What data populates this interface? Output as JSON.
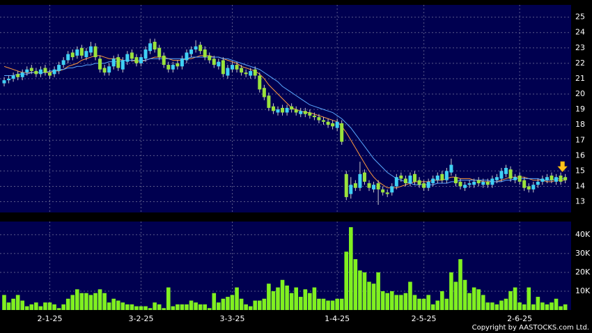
{
  "chart_data": [
    {
      "type": "candlestick",
      "categories": [
        null,
        null,
        null,
        null,
        null,
        null,
        null,
        null,
        null,
        null,
        "2-1-25",
        null,
        null,
        null,
        null,
        null,
        null,
        null,
        null,
        null,
        null,
        null,
        null,
        null,
        null,
        null,
        null,
        null,
        null,
        null,
        "3-2-25",
        null,
        null,
        null,
        null,
        null,
        null,
        null,
        null,
        null,
        null,
        null,
        null,
        null,
        null,
        null,
        null,
        null,
        null,
        null,
        "3-3-25",
        null,
        null,
        null,
        null,
        null,
        null,
        null,
        null,
        null,
        null,
        null,
        null,
        null,
        null,
        null,
        null,
        null,
        null,
        null,
        null,
        null,
        null,
        "1-4-25",
        null,
        null,
        null,
        null,
        null,
        null,
        null,
        null,
        null,
        null,
        null,
        null,
        null,
        null,
        null,
        null,
        null,
        null,
        "2-5-25",
        null,
        null,
        null,
        null,
        null,
        null,
        null,
        null,
        null,
        null,
        null,
        null,
        null,
        null,
        null,
        null,
        null,
        null,
        null,
        null,
        "2-6-25",
        null,
        null,
        null,
        null,
        null,
        null,
        null,
        null,
        null,
        null
      ],
      "open": [
        20.7,
        20.9,
        21.0,
        21.3,
        21.1,
        21.4,
        21.7,
        21.5,
        21.3,
        21.7,
        21.4,
        21.3,
        21.5,
        21.9,
        22.2,
        22.7,
        22.5,
        23.0,
        22.4,
        22.7,
        23.1,
        22.3,
        21.7,
        21.4,
        21.8,
        22.4,
        21.6,
        22.1,
        22.7,
        22.4,
        22.0,
        22.3,
        22.8,
        23.4,
        23.0,
        22.5,
        21.9,
        21.6,
        22.0,
        21.8,
        22.2,
        22.6,
        22.9,
        23.2,
        22.9,
        22.5,
        22.3,
        21.8,
        22.2,
        21.2,
        21.6,
        21.9,
        21.7,
        21.4,
        21.2,
        21.6,
        21.2,
        20.4,
        19.9,
        19.2,
        18.8,
        19.1,
        18.8,
        19.2,
        19.0,
        18.7,
        18.9,
        18.8,
        18.6,
        18.5,
        18.3,
        18.2,
        18.1,
        17.8,
        18.1,
        14.8,
        13.5,
        14.2,
        13.9,
        14.9,
        14.2,
        13.8,
        14.2,
        13.8,
        13.6,
        13.6,
        14.0,
        14.7,
        14.5,
        14.2,
        14.8,
        14.4,
        14.2,
        13.9,
        14.2,
        14.4,
        14.8,
        14.4,
        14.9,
        14.6,
        14.3,
        13.9,
        14.1,
        14.1,
        14.4,
        14.1,
        14.3,
        14.1,
        14.4,
        14.5,
        14.8,
        15.1,
        14.4,
        14.7,
        14.4,
        14.0,
        13.8,
        14.1,
        14.3,
        14.4,
        14.7,
        14.3,
        14.7,
        14.6
      ],
      "high": [
        21.1,
        21.2,
        21.4,
        21.5,
        21.6,
        21.8,
        21.9,
        21.7,
        21.8,
        21.9,
        21.6,
        21.8,
        22.1,
        22.4,
        22.8,
        22.9,
        23.1,
        23.2,
        23.0,
        23.4,
        23.3,
        22.5,
        21.9,
        22.0,
        22.5,
        22.6,
        22.4,
        22.8,
        22.9,
        22.6,
        22.6,
        23.1,
        23.6,
        23.6,
        23.2,
        22.7,
        22.1,
        22.1,
        22.2,
        22.5,
        22.9,
        23.1,
        23.5,
        23.4,
        23.1,
        22.7,
        22.5,
        22.3,
        22.4,
        21.9,
        22.1,
        22.1,
        21.9,
        21.6,
        21.7,
        21.8,
        21.4,
        20.6,
        20.1,
        19.4,
        19.2,
        19.3,
        19.3,
        19.4,
        19.2,
        19.1,
        19.1,
        19.0,
        18.8,
        18.7,
        18.5,
        18.4,
        18.3,
        18.4,
        18.3,
        15.0,
        14.6,
        14.4,
        15.6,
        15.1,
        14.4,
        14.3,
        14.4,
        14.0,
        13.8,
        14.2,
        14.8,
        14.9,
        14.7,
        14.9,
        15.0,
        14.6,
        14.4,
        14.5,
        14.7,
        14.9,
        15.0,
        15.2,
        15.8,
        14.8,
        14.5,
        14.3,
        14.4,
        14.5,
        14.6,
        14.5,
        14.5,
        14.7,
        14.8,
        15.2,
        15.4,
        15.3,
        14.8,
        14.9,
        14.6,
        14.2,
        14.3,
        14.5,
        14.7,
        14.8,
        14.9,
        14.8,
        14.9,
        14.8
      ],
      "low": [
        20.5,
        20.7,
        20.8,
        20.9,
        20.9,
        21.2,
        21.3,
        21.1,
        21.1,
        21.2,
        21.0,
        21.1,
        21.3,
        21.7,
        22.0,
        22.2,
        22.3,
        22.3,
        22.2,
        22.5,
        22.2,
        21.4,
        21.2,
        21.2,
        21.6,
        21.5,
        21.4,
        21.9,
        22.1,
        21.8,
        21.8,
        22.1,
        22.6,
        22.7,
        22.2,
        21.7,
        21.4,
        21.4,
        21.6,
        21.6,
        22.0,
        22.4,
        22.7,
        22.6,
        22.2,
        22.0,
        21.7,
        21.6,
        21.1,
        21.0,
        21.4,
        21.4,
        21.2,
        21.1,
        21.0,
        21.0,
        20.1,
        19.6,
        18.9,
        18.7,
        18.6,
        18.6,
        18.6,
        18.8,
        18.6,
        18.5,
        18.5,
        18.4,
        18.3,
        18.1,
        18.0,
        17.8,
        17.7,
        17.6,
        16.7,
        13.1,
        13.2,
        13.7,
        13.7,
        14.1,
        13.7,
        13.6,
        12.8,
        13.4,
        13.3,
        13.4,
        13.8,
        14.3,
        14.0,
        14.0,
        14.1,
        13.9,
        13.7,
        13.7,
        14.0,
        14.2,
        14.2,
        14.2,
        14.7,
        14.0,
        13.8,
        13.7,
        13.9,
        13.9,
        14.0,
        13.9,
        13.9,
        13.9,
        14.2,
        14.3,
        14.6,
        14.3,
        14.2,
        14.1,
        13.7,
        13.6,
        13.6,
        13.9,
        14.1,
        14.2,
        14.2,
        14.1,
        14.1,
        14.2
      ],
      "close": [
        20.9,
        21.0,
        21.2,
        21.1,
        21.4,
        21.6,
        21.5,
        21.3,
        21.6,
        21.4,
        21.2,
        21.6,
        21.9,
        22.2,
        22.6,
        22.4,
        22.9,
        22.5,
        22.8,
        23.1,
        22.4,
        21.6,
        21.4,
        21.8,
        22.3,
        21.7,
        22.2,
        22.6,
        22.3,
        22.0,
        22.4,
        22.9,
        23.3,
        22.9,
        22.4,
        21.9,
        21.6,
        21.9,
        21.8,
        22.3,
        22.7,
        22.9,
        23.1,
        22.8,
        22.4,
        22.2,
        21.9,
        22.1,
        21.3,
        21.7,
        21.9,
        21.6,
        21.4,
        21.3,
        21.5,
        21.2,
        20.3,
        19.8,
        19.1,
        18.9,
        19.0,
        18.8,
        19.1,
        19.0,
        18.8,
        18.9,
        18.7,
        18.6,
        18.5,
        18.3,
        18.2,
        18.0,
        17.9,
        18.2,
        16.9,
        13.3,
        14.1,
        13.9,
        14.8,
        14.3,
        13.9,
        14.1,
        13.8,
        13.6,
        13.5,
        14.0,
        14.6,
        14.5,
        14.2,
        14.7,
        14.3,
        14.1,
        13.9,
        14.3,
        14.5,
        14.7,
        14.4,
        15.0,
        15.4,
        14.2,
        14.0,
        14.1,
        14.2,
        14.3,
        14.2,
        14.3,
        14.1,
        14.5,
        14.6,
        15.0,
        15.2,
        14.5,
        14.6,
        14.3,
        13.9,
        13.8,
        14.1,
        14.3,
        14.5,
        14.6,
        14.4,
        14.6,
        14.3,
        14.4
      ],
      "up_color": "#3fd0f4",
      "down_color": "#9ae33c",
      "lines": [
        {
          "color": "#ff9a3c",
          "values": [
            21.8,
            21.7,
            21.6,
            21.5,
            21.4,
            21.4,
            21.4,
            21.4,
            21.4,
            21.4,
            21.4,
            21.5,
            21.5,
            21.6,
            21.8,
            21.9,
            22.0,
            22.2,
            22.3,
            22.4,
            22.5,
            22.5,
            22.4,
            22.3,
            22.3,
            22.3,
            22.2,
            22.2,
            22.2,
            22.1,
            22.1,
            22.2,
            22.3,
            22.4,
            22.4,
            22.4,
            22.3,
            22.2,
            22.2,
            22.2,
            22.3,
            22.3,
            22.4,
            22.5,
            22.5,
            22.5,
            22.4,
            22.4,
            22.3,
            22.2,
            22.1,
            22.0,
            21.8,
            21.7,
            21.6,
            21.5,
            21.3,
            21.0,
            20.6,
            20.3,
            20.0,
            19.7,
            19.4,
            19.1,
            19.0,
            18.9,
            18.8,
            18.8,
            18.7,
            18.6,
            18.5,
            18.4,
            18.3,
            18.2,
            17.9,
            17.5,
            17.0,
            16.5,
            16.0,
            15.5,
            15.0,
            14.6,
            14.3,
            14.1,
            13.9,
            13.9,
            13.9,
            14.0,
            14.1,
            14.2,
            14.3,
            14.3,
            14.3,
            14.3,
            14.4,
            14.4,
            14.4,
            14.5,
            14.6,
            14.6,
            14.5,
            14.5,
            14.5,
            14.4,
            14.4,
            14.3,
            14.3,
            14.3,
            14.3,
            14.4,
            14.5,
            14.6,
            14.6,
            14.6,
            14.6,
            14.5,
            14.4,
            14.4,
            14.4,
            14.3,
            14.3,
            14.4,
            14.4,
            14.4
          ]
        },
        {
          "color": "#5aa8ff",
          "values": [
            21.2,
            21.2,
            21.2,
            21.3,
            21.3,
            21.3,
            21.4,
            21.4,
            21.4,
            21.4,
            21.5,
            21.5,
            21.6,
            21.6,
            21.7,
            21.7,
            21.8,
            21.8,
            21.9,
            21.9,
            22.0,
            22.0,
            22.0,
            22.1,
            22.1,
            22.1,
            22.2,
            22.2,
            22.2,
            22.2,
            22.2,
            22.2,
            22.3,
            22.3,
            22.3,
            22.3,
            22.3,
            22.3,
            22.3,
            22.3,
            22.3,
            22.4,
            22.4,
            22.4,
            22.4,
            22.4,
            22.4,
            22.4,
            22.3,
            22.3,
            22.2,
            22.1,
            22.0,
            21.9,
            21.8,
            21.7,
            21.6,
            21.4,
            21.2,
            21.0,
            20.8,
            20.5,
            20.3,
            20.1,
            19.9,
            19.7,
            19.5,
            19.3,
            19.2,
            19.1,
            19.0,
            18.9,
            18.8,
            18.6,
            18.4,
            18.1,
            17.8,
            17.4,
            17.0,
            16.6,
            16.2,
            15.8,
            15.5,
            15.2,
            14.9,
            14.7,
            14.5,
            14.4,
            14.3,
            14.2,
            14.1,
            14.1,
            14.1,
            14.1,
            14.1,
            14.2,
            14.2,
            14.2,
            14.3,
            14.3,
            14.4,
            14.4,
            14.4,
            14.4,
            14.4,
            14.4,
            14.4,
            14.3,
            14.3,
            14.3,
            14.4,
            14.4,
            14.5,
            14.5,
            14.5,
            14.5,
            14.5,
            14.5,
            14.4,
            14.4,
            14.4,
            14.5,
            14.5,
            14.5
          ]
        }
      ],
      "ylim": [
        12.3,
        25.8
      ],
      "yticks": [
        13,
        14,
        15,
        16,
        17,
        18,
        19,
        20,
        21,
        22,
        23,
        24,
        25
      ],
      "grid": true
    },
    {
      "type": "bar",
      "color": "#80f020",
      "values": [
        8000,
        4000,
        6000,
        8000,
        5000,
        2000,
        3000,
        4000,
        2000,
        4000,
        4000,
        3000,
        1000,
        3000,
        6000,
        8000,
        11000,
        9000,
        9000,
        8000,
        9000,
        11000,
        9000,
        4000,
        6000,
        5000,
        4000,
        3000,
        3000,
        2000,
        2000,
        2000,
        1000,
        4000,
        3000,
        1000,
        12000,
        2000,
        3000,
        3000,
        3000,
        5000,
        4000,
        3000,
        3000,
        1000,
        9000,
        4000,
        6000,
        7000,
        8000,
        12000,
        6000,
        3000,
        2000,
        5000,
        5000,
        6000,
        14000,
        10000,
        12000,
        16000,
        13000,
        9000,
        12000,
        7000,
        11000,
        9000,
        12000,
        6000,
        6000,
        5000,
        5000,
        6000,
        6000,
        31000,
        44000,
        27000,
        21000,
        20000,
        15000,
        14000,
        20000,
        10000,
        9000,
        10000,
        8000,
        8000,
        9000,
        15000,
        8000,
        6000,
        6000,
        8000,
        3000,
        5000,
        10000,
        6000,
        20000,
        15000,
        27000,
        16000,
        9000,
        12000,
        11000,
        8000,
        4000,
        4000,
        3000,
        5000,
        6000,
        10000,
        12000,
        4000,
        3000,
        12000,
        3000,
        7000,
        4000,
        3000,
        4000,
        6000,
        2000,
        3000
      ],
      "ylim": [
        0,
        47000
      ],
      "yticks": [
        {
          "value": 10000,
          "label": "10K"
        },
        {
          "value": 20000,
          "label": "20K"
        },
        {
          "value": 30000,
          "label": "30K"
        },
        {
          "value": 40000,
          "label": "40K"
        }
      ],
      "grid": true
    }
  ],
  "copyright": "Copyright by AASTOCKS.com Ltd."
}
